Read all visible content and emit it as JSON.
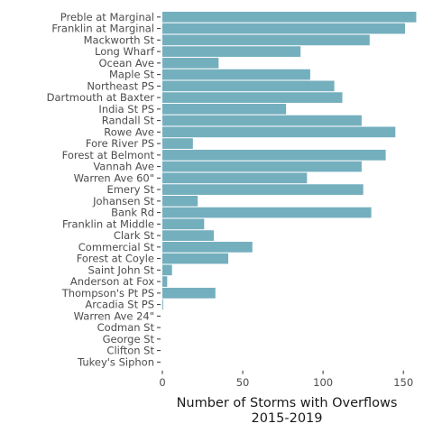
{
  "chart_data": {
    "type": "bar",
    "orientation": "horizontal",
    "bar_color": "#74AFBE",
    "xlabel_line1": "Number of Storms with Overflows",
    "xlabel_line2": "2015-2019",
    "ylabel": "",
    "xlim": [
      0,
      160
    ],
    "xticks": [
      0,
      50,
      100,
      150
    ],
    "grid": false,
    "categories": [
      "Preble at Marginal",
      "Franklin at Marginal",
      "Mackworth St",
      "Long Wharf",
      "Ocean Ave",
      "Maple St",
      "Northeast PS",
      "Dartmouth at Baxter",
      "India St PS",
      "Randall St",
      "Rowe Ave",
      "Fore River PS",
      "Forest at Belmont",
      "Vannah Ave",
      "Warren Ave 60\"",
      "Emery St",
      "Johansen St",
      "Bank Rd",
      "Franklin at Middle",
      "Clark St",
      "Commercial St",
      "Forest at Coyle",
      "Saint John St",
      "Anderson at Fox",
      "Thompson's Pt PS",
      "Arcadia St PS",
      "Warren Ave 24\"",
      "Codman St",
      "George St",
      "Clifton St",
      "Tukey's Siphon"
    ],
    "values": [
      158,
      151,
      129,
      86,
      35,
      92,
      107,
      112,
      77,
      124,
      145,
      19,
      139,
      124,
      90,
      125,
      22,
      130,
      26,
      32,
      56,
      41,
      6,
      3,
      33,
      0.5,
      0,
      0,
      0,
      0,
      0
    ]
  }
}
